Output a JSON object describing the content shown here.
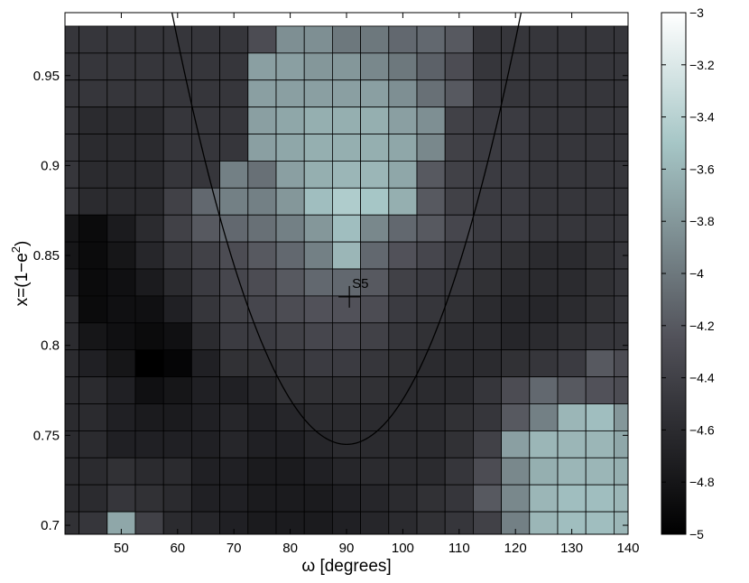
{
  "chart_data": {
    "type": "heatmap",
    "xlabel": "ω [degrees]",
    "ylabel_base": "x=(1−e",
    "ylabel_sup": "2",
    "ylabel_close": ")",
    "xlim": [
      40,
      140
    ],
    "ylim": [
      0.695,
      0.985
    ],
    "xticks": [
      50,
      60,
      70,
      80,
      90,
      100,
      110,
      120,
      130,
      140
    ],
    "yticks": [
      0.7,
      0.75,
      0.8,
      0.85,
      0.9,
      0.95
    ],
    "colorbar": {
      "range": [
        -5,
        -3
      ],
      "ticks": [
        -3,
        -3.2,
        -3.4,
        -3.6,
        -3.8,
        -4,
        -4.2,
        -4.4,
        -4.6,
        -4.8,
        -5
      ],
      "tick_labels": [
        "−3",
        "−3.2",
        "−3.4",
        "−3.6",
        "−3.8",
        "−4",
        "−4.2",
        "−4.4",
        "−4.6",
        "−4.8",
        "−5"
      ],
      "colormap": "bone"
    },
    "grid_x_centers": [
      40,
      45,
      50,
      55,
      60,
      65,
      70,
      75,
      80,
      85,
      90,
      95,
      100,
      105,
      110,
      115,
      120,
      125,
      130,
      135,
      140
    ],
    "grid_y_centers": [
      0.7,
      0.715,
      0.73,
      0.745,
      0.76,
      0.775,
      0.79,
      0.805,
      0.82,
      0.835,
      0.85,
      0.865,
      0.88,
      0.895,
      0.91,
      0.925,
      0.94,
      0.955,
      0.97
    ],
    "values_rows_top_to_bottom": [
      [
        -4.5,
        -4.5,
        -4.5,
        -4.5,
        -4.5,
        -4.5,
        -4.5,
        -4.3,
        -3.85,
        -3.85,
        -4.0,
        -4.0,
        -4.1,
        -4.1,
        -4.2,
        -4.5,
        -4.5,
        -4.5,
        -4.5,
        -4.5,
        -4.5
      ],
      [
        -4.5,
        -4.5,
        -4.5,
        -4.5,
        -4.5,
        -4.5,
        -4.5,
        -3.75,
        -3.75,
        -3.8,
        -3.8,
        -3.9,
        -4.0,
        -4.15,
        -4.3,
        -4.5,
        -4.5,
        -4.5,
        -4.5,
        -4.5,
        -4.5
      ],
      [
        -4.5,
        -4.5,
        -4.5,
        -4.5,
        -4.5,
        -4.5,
        -4.5,
        -3.75,
        -3.75,
        -3.75,
        -3.75,
        -3.75,
        -3.85,
        -4.05,
        -4.2,
        -4.45,
        -4.5,
        -4.5,
        -4.5,
        -4.5,
        -4.5
      ],
      [
        -4.5,
        -4.6,
        -4.6,
        -4.6,
        -4.5,
        -4.5,
        -4.5,
        -3.75,
        -3.7,
        -3.65,
        -3.65,
        -3.65,
        -3.75,
        -3.85,
        -4.4,
        -4.45,
        -4.45,
        -4.5,
        -4.5,
        -4.5,
        -4.5
      ],
      [
        -4.5,
        -4.6,
        -4.6,
        -4.6,
        -4.5,
        -4.5,
        -4.5,
        -3.75,
        -3.7,
        -3.65,
        -3.65,
        -3.65,
        -3.7,
        -3.9,
        -4.4,
        -4.45,
        -4.45,
        -4.5,
        -4.5,
        -4.5,
        -4.5
      ],
      [
        -4.5,
        -4.6,
        -4.6,
        -4.6,
        -4.5,
        -4.5,
        -3.95,
        -4.05,
        -3.75,
        -3.65,
        -3.6,
        -3.6,
        -3.7,
        -4.2,
        -4.4,
        -4.45,
        -4.45,
        -4.5,
        -4.5,
        -4.5,
        -4.5
      ],
      [
        -4.5,
        -4.6,
        -4.6,
        -4.6,
        -4.4,
        -4.1,
        -3.95,
        -3.95,
        -3.8,
        -3.55,
        -3.45,
        -3.5,
        -3.65,
        -4.2,
        -4.4,
        -4.45,
        -4.45,
        -4.5,
        -4.5,
        -4.5,
        -4.5
      ],
      [
        -4.8,
        -4.9,
        -4.75,
        -4.6,
        -4.4,
        -4.2,
        -4.1,
        -4.05,
        -3.95,
        -3.8,
        -3.55,
        -3.9,
        -4.1,
        -4.2,
        -4.35,
        -4.45,
        -4.45,
        -4.5,
        -4.5,
        -4.5,
        -4.5
      ],
      [
        -4.8,
        -4.9,
        -4.8,
        -4.65,
        -4.5,
        -4.4,
        -4.3,
        -4.2,
        -4.1,
        -3.95,
        -3.6,
        -4.1,
        -4.25,
        -4.35,
        -4.45,
        -4.5,
        -4.55,
        -4.6,
        -4.6,
        -4.55,
        -4.5
      ],
      [
        -4.7,
        -4.9,
        -4.85,
        -4.75,
        -4.6,
        -4.45,
        -4.35,
        -4.3,
        -4.2,
        -4.1,
        -4.1,
        -4.2,
        -4.4,
        -4.45,
        -4.5,
        -4.55,
        -4.6,
        -4.6,
        -4.6,
        -4.55,
        -4.5
      ],
      [
        -4.6,
        -4.9,
        -4.85,
        -4.85,
        -4.7,
        -4.5,
        -4.4,
        -4.35,
        -4.3,
        -4.25,
        -4.25,
        -4.3,
        -4.45,
        -4.5,
        -4.55,
        -4.6,
        -4.65,
        -4.65,
        -4.6,
        -4.55,
        -4.5
      ],
      [
        -4.6,
        -4.8,
        -4.85,
        -4.9,
        -4.85,
        -4.6,
        -4.45,
        -4.45,
        -4.4,
        -4.35,
        -4.35,
        -4.4,
        -4.5,
        -4.55,
        -4.6,
        -4.6,
        -4.65,
        -4.6,
        -4.55,
        -4.5,
        -4.5
      ],
      [
        -4.6,
        -4.7,
        -4.8,
        -5.0,
        -4.95,
        -4.7,
        -4.55,
        -4.55,
        -4.5,
        -4.45,
        -4.45,
        -4.5,
        -4.55,
        -4.6,
        -4.6,
        -4.6,
        -4.55,
        -4.5,
        -4.45,
        -4.2,
        -4.3
      ],
      [
        -4.6,
        -4.6,
        -4.7,
        -4.85,
        -4.8,
        -4.7,
        -4.7,
        -4.65,
        -4.55,
        -4.55,
        -4.55,
        -4.55,
        -4.6,
        -4.6,
        -4.6,
        -4.5,
        -4.3,
        -4.1,
        -4.2,
        -4.25,
        -4.3
      ],
      [
        -4.6,
        -4.6,
        -4.7,
        -4.75,
        -4.75,
        -4.7,
        -4.65,
        -4.7,
        -4.65,
        -4.6,
        -4.6,
        -4.6,
        -4.6,
        -4.6,
        -4.55,
        -4.5,
        -4.2,
        -3.95,
        -3.6,
        -3.55,
        -3.8
      ],
      [
        -4.6,
        -4.6,
        -4.7,
        -4.7,
        -4.7,
        -4.7,
        -4.65,
        -4.7,
        -4.7,
        -4.65,
        -4.6,
        -4.6,
        -4.6,
        -4.6,
        -4.55,
        -4.4,
        -3.75,
        -3.6,
        -3.6,
        -3.6,
        -3.7
      ],
      [
        -4.6,
        -4.6,
        -4.55,
        -4.6,
        -4.6,
        -4.7,
        -4.7,
        -4.75,
        -4.75,
        -4.7,
        -4.65,
        -4.6,
        -4.6,
        -4.6,
        -4.5,
        -4.3,
        -3.9,
        -3.65,
        -3.6,
        -3.6,
        -3.65
      ],
      [
        -4.6,
        -4.6,
        -4.5,
        -4.55,
        -4.6,
        -4.7,
        -4.7,
        -4.75,
        -4.75,
        -4.75,
        -4.7,
        -4.65,
        -4.6,
        -4.55,
        -4.5,
        -4.2,
        -3.9,
        -3.6,
        -3.55,
        -3.55,
        -3.6
      ],
      [
        -4.55,
        -4.5,
        -3.7,
        -4.4,
        -4.6,
        -4.65,
        -4.7,
        -4.75,
        -4.75,
        -4.75,
        -4.7,
        -4.65,
        -4.6,
        -4.55,
        -4.5,
        -4.4,
        -3.95,
        -3.6,
        -3.55,
        -3.55,
        -3.6
      ]
    ],
    "curve": {
      "type": "parabola",
      "vertex": [
        90,
        0.745
      ],
      "passes_through": [
        [
          121,
          0.985
        ],
        [
          59,
          0.985
        ]
      ]
    },
    "marker": {
      "label": "S5",
      "x": 90.5,
      "y": 0.827,
      "symbol": "+"
    }
  }
}
